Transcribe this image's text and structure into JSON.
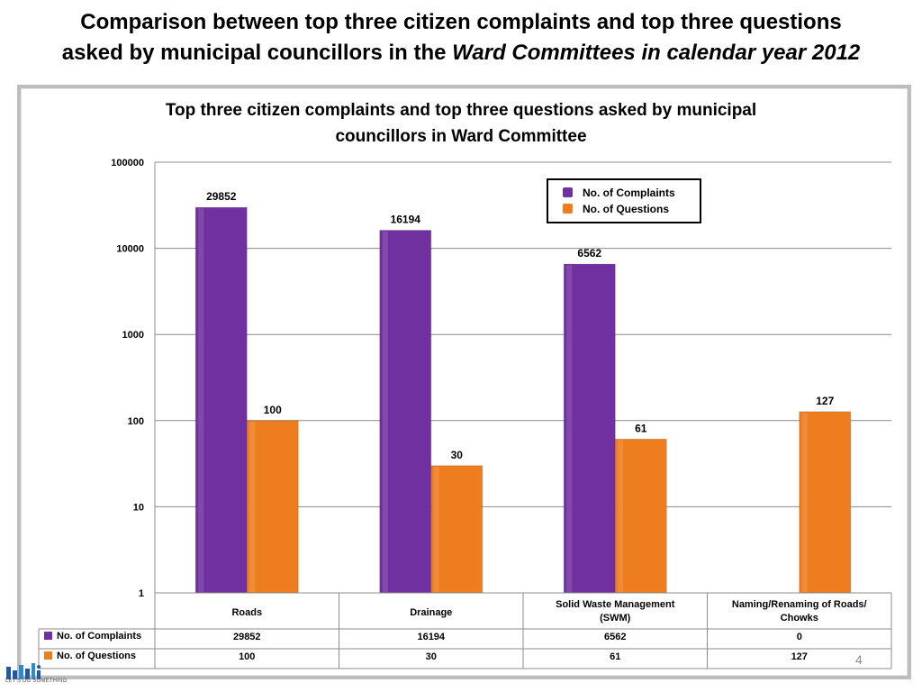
{
  "slide": {
    "title_line1": "Comparison between top three citizen complaints and top three questions",
    "title_line2_plain": "asked by municipal councillors in the ",
    "title_line2_italic": "Ward Committees in calendar year 2012",
    "page_number": "4",
    "logo_text": "LET'S DO SOMETHING"
  },
  "colors": {
    "complaints": "#7030A0",
    "questions": "#ED7D1F"
  },
  "chart_data": {
    "type": "bar",
    "title_lines": [
      "Top three citizen complaints and top three questions asked by municipal",
      "councillors in Ward Committee"
    ],
    "yscale": "log",
    "ylim": [
      1,
      100000
    ],
    "yticks": [
      1,
      10,
      100,
      1000,
      10000,
      100000
    ],
    "grid": true,
    "legend_position": "top-right",
    "categories": [
      [
        "Roads"
      ],
      [
        "Drainage"
      ],
      [
        "Solid Waste Management",
        "(SWM)"
      ],
      [
        "Naming/Renaming of Roads/",
        "Chowks"
      ]
    ],
    "series": [
      {
        "name": "No. of Complaints",
        "values": [
          29852,
          16194,
          6562,
          0
        ],
        "labels": [
          "29852",
          "16194",
          "6562",
          "0"
        ],
        "color": "#7030A0"
      },
      {
        "name": "No. of Questions",
        "values": [
          100,
          30,
          61,
          127
        ],
        "labels": [
          "100",
          "30",
          "61",
          "127"
        ],
        "color": "#ED7D1F"
      }
    ]
  }
}
